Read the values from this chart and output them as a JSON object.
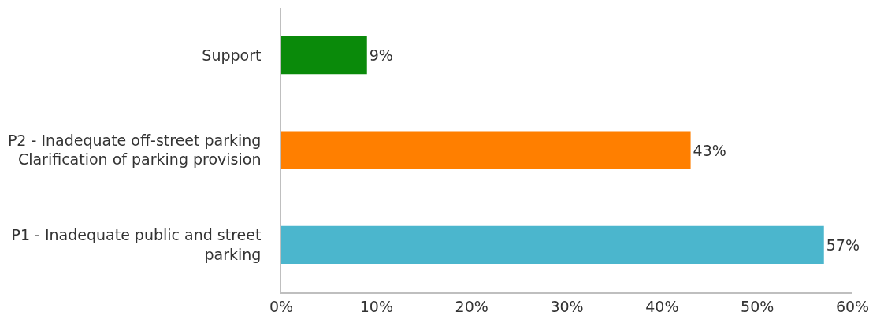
{
  "chart_data": {
    "type": "bar",
    "orientation": "horizontal",
    "categories": [
      "Support",
      "P2 - Inadequate off-street parking Clarification of parking provision",
      "P1 - Inadequate public and street parking"
    ],
    "values": [
      9,
      43,
      57
    ],
    "colors": [
      "#0a8a0a",
      "#ff7f00",
      "#4bb6cd"
    ],
    "value_labels": [
      "9%",
      "43%",
      "57%"
    ],
    "xlim": [
      0,
      60
    ],
    "xticks": [
      {
        "value": 0,
        "label": "0%"
      },
      {
        "value": 10,
        "label": "10%"
      },
      {
        "value": 20,
        "label": "20%"
      },
      {
        "value": 30,
        "label": "30%"
      },
      {
        "value": 40,
        "label": "40%"
      },
      {
        "value": 50,
        "label": "50%"
      },
      {
        "value": 60,
        "label": "60%"
      }
    ]
  }
}
